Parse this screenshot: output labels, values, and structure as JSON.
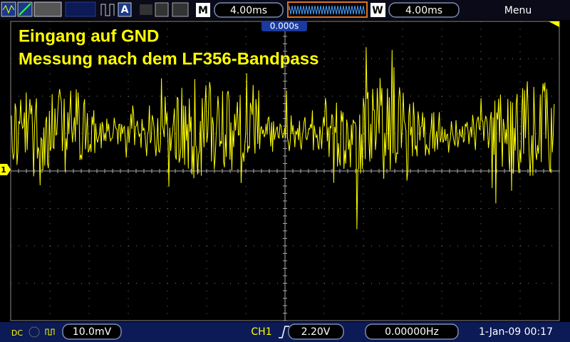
{
  "toolbar": {
    "acquire_icon": "A",
    "timebase_label": "M",
    "timebase": "4.00ms",
    "window_label": "W",
    "window": "4.00ms",
    "menu": "Menu"
  },
  "trigger_position": "0.000s",
  "annotation": [
    "Eingang auf GND",
    "Messung nach dem LF356-Bandpass"
  ],
  "channel_marker": "1",
  "status_bar": {
    "coupling": "DC",
    "volts_per_div": "10.0mV",
    "trigger_source": "CH1",
    "trigger_level": "2.20V",
    "frequency": "0.00000Hz",
    "datetime": "1-Jan-09 00:17"
  }
}
